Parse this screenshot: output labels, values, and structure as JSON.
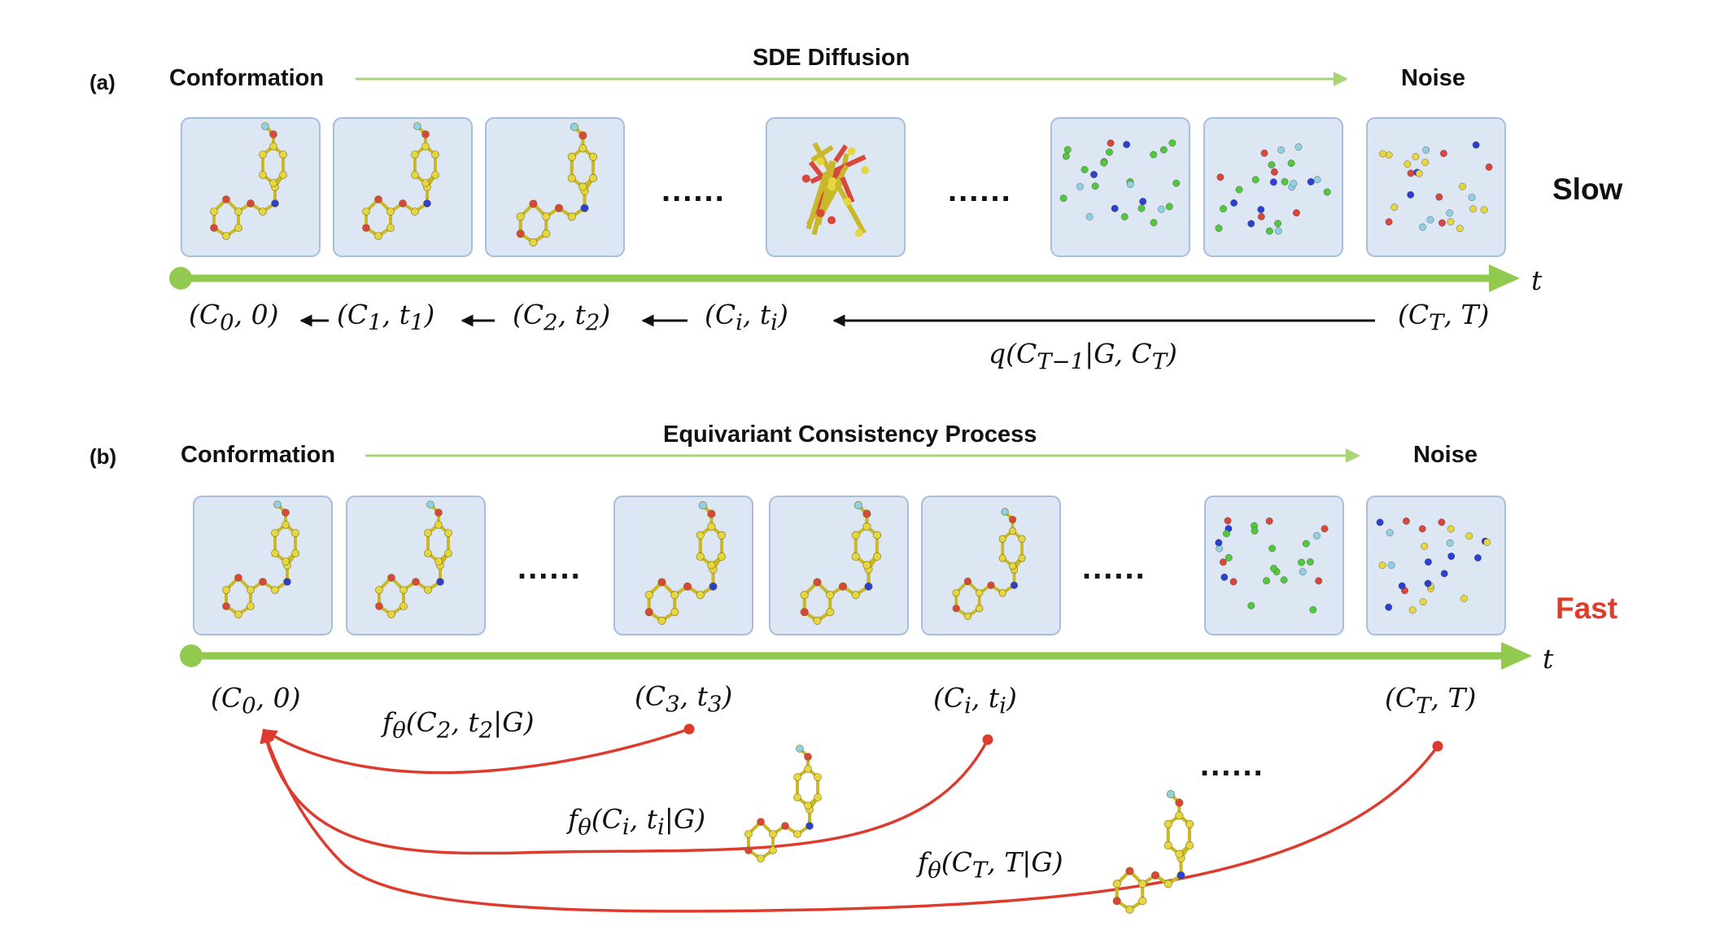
{
  "colors": {
    "timeline": "#92c94f",
    "process_arrow": "#a8d473",
    "panel_fill": "#dde6f3",
    "panel_stroke": "#a7bedc",
    "reverse_arrow": "#111111",
    "shortcut_arrow": "#de3b2f",
    "fast_text": "#e23b2a",
    "atom_carbon": "#e6d640",
    "atom_oxygen": "#d9463c",
    "atom_nitrogen": "#2b3fd1",
    "atom_fluorine": "#8fd0e2",
    "atom_noise_green": "#52c83c"
  },
  "panel_a": {
    "tag": "(a)",
    "start_label": "Conformation",
    "process_label": "SDE Diffusion",
    "end_label": "Noise",
    "speed_label": "Slow",
    "axis_label": "t",
    "ellipsis_1": "......",
    "ellipsis_2": "......",
    "states": [
      {
        "c": "(C",
        "sub": "0",
        "t": ", 0)"
      },
      {
        "c": "(C",
        "sub": "1",
        "t": ", t",
        "tsub": "1",
        "close": ")"
      },
      {
        "c": "(C",
        "sub": "2",
        "t": ", t",
        "tsub": "2",
        "close": ")"
      },
      {
        "c": "(C",
        "sub": "i",
        "t": ", t",
        "tsub": "i",
        "close": ")"
      },
      {
        "c": "(C",
        "sub": "T",
        "t": ", T)"
      }
    ],
    "reverse_step": {
      "pre": "q(C",
      "sub1": "T−1",
      "mid": "|G, C",
      "sub2": "T",
      "post": ")"
    },
    "frames": [
      {
        "icon": "folded-molecule-icon"
      },
      {
        "icon": "folded-molecule-icon"
      },
      {
        "icon": "partially-perturbed-molecule-icon"
      },
      {
        "icon": "tangled-molecule-icon"
      },
      {
        "icon": "scattered-atoms-icon"
      },
      {
        "icon": "scattered-atoms-icon"
      },
      {
        "icon": "random-noise-atoms-icon"
      }
    ]
  },
  "panel_b": {
    "tag": "(b)",
    "start_label": "Conformation",
    "process_label": "Equivariant Consistency Process",
    "end_label": "Noise",
    "speed_label": "Fast",
    "axis_label": "t",
    "ellipsis_1": "......",
    "ellipsis_2": "......",
    "ellipsis_3": "......",
    "states": [
      {
        "c": "(C",
        "sub": "0",
        "t": ", 0)"
      },
      {
        "c": "(C",
        "sub": "3",
        "t": ", t",
        "tsub": "3",
        "close": ")"
      },
      {
        "c": "(C",
        "sub": "i",
        "t": ", t",
        "tsub": "i",
        "close": ")"
      },
      {
        "c": "(C",
        "sub": "T",
        "t": ", T)"
      }
    ],
    "consistency_maps": [
      {
        "pre": "f",
        "fsub": "θ",
        "mid": "(C",
        "sub": "2",
        "t": ", t",
        "tsub": "2",
        "post": "|G)"
      },
      {
        "pre": "f",
        "fsub": "θ",
        "mid": "(C",
        "sub": "i",
        "t": ", t",
        "tsub": "i",
        "post": "|G)"
      },
      {
        "pre": "f",
        "fsub": "θ",
        "mid": "(C",
        "sub": "T",
        "t": ", T",
        "tsub": "",
        "post": "|G)"
      }
    ],
    "frames": [
      {
        "icon": "folded-molecule-icon"
      },
      {
        "icon": "folded-molecule-icon"
      },
      {
        "icon": "partially-perturbed-molecule-icon"
      },
      {
        "icon": "partially-perturbed-molecule-icon"
      },
      {
        "icon": "unfolding-molecule-icon"
      },
      {
        "icon": "scattered-atoms-icon"
      },
      {
        "icon": "random-noise-atoms-icon"
      }
    ]
  }
}
